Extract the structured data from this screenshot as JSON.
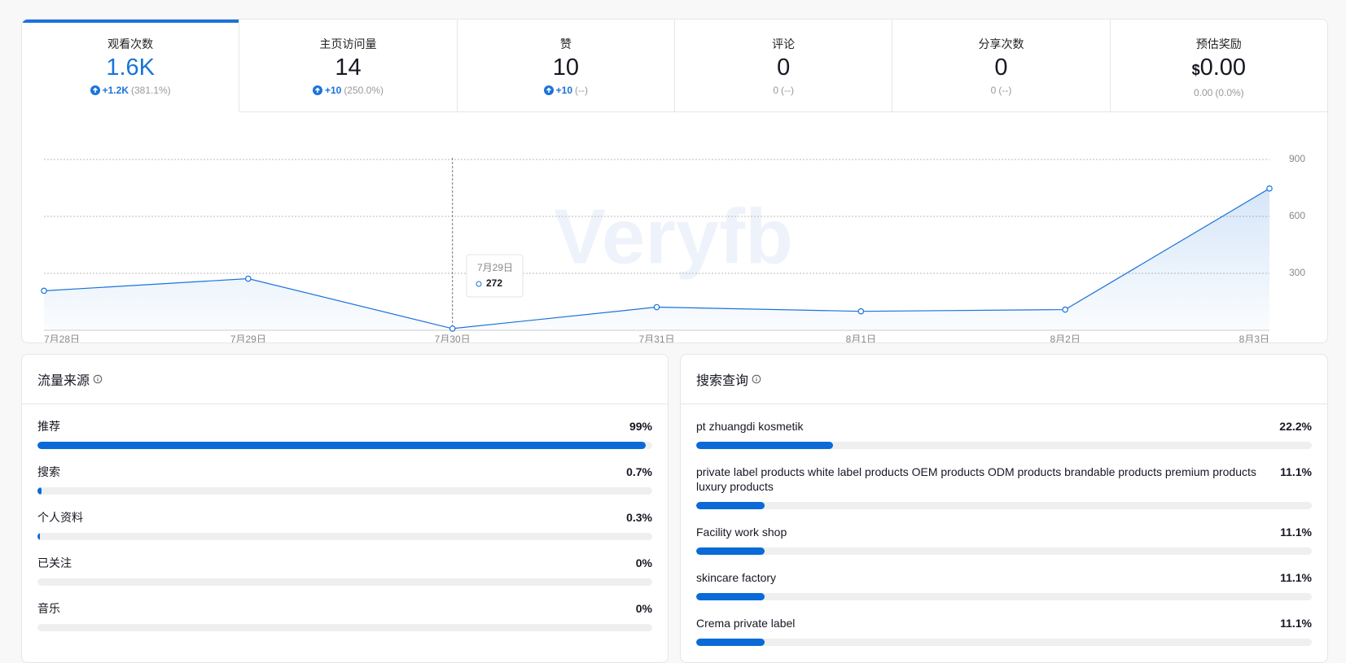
{
  "tabs": [
    {
      "label": "观看次数",
      "value": "1.6K",
      "trend": "up",
      "change": "+1.2K",
      "pct": "(381.1%)"
    },
    {
      "label": "主页访问量",
      "value": "14",
      "trend": "up",
      "change": "+10",
      "pct": "(250.0%)"
    },
    {
      "label": "赞",
      "value": "10",
      "trend": "up",
      "change": "+10",
      "pct": "(--)"
    },
    {
      "label": "评论",
      "value": "0",
      "change": "0",
      "pct": "(--)"
    },
    {
      "label": "分享次数",
      "value": "0",
      "change": "0",
      "pct": "(--)"
    },
    {
      "label": "预估奖励",
      "currency": "$",
      "value": "0.00",
      "change": "0.00",
      "pct": "(0.0%)"
    }
  ],
  "chart_data": {
    "type": "line",
    "categories": [
      "7月28日",
      "7月29日",
      "7月30日",
      "7月31日",
      "8月1日",
      "8月2日",
      "8月3日"
    ],
    "series": [
      {
        "name": "观看次数",
        "color": "#1a73d9",
        "values": [
          208,
          272,
          9,
          122,
          100,
          109,
          747
        ]
      }
    ],
    "ylim": [
      0,
      900
    ],
    "yticks": [
      300,
      600,
      900
    ],
    "grid": true,
    "tooltip_index": 1,
    "watermark": "Veryfb"
  },
  "panels": [
    {
      "title": "流量来源",
      "items": [
        {
          "label": "推荐",
          "value": 99,
          "value_label": "99%"
        },
        {
          "label": "搜索",
          "value": 0.7,
          "value_label": "0.7%"
        },
        {
          "label": "个人资料",
          "value": 0.3,
          "value_label": "0.3%"
        },
        {
          "label": "已关注",
          "value": 0,
          "value_label": "0%"
        },
        {
          "label": "音乐",
          "value": 0,
          "value_label": "0%"
        }
      ]
    },
    {
      "title": "搜索查询",
      "items": [
        {
          "label": "pt zhuangdi kosmetik",
          "value": 22.2,
          "value_label": "22.2%"
        },
        {
          "label": "private label products white label products OEM products ODM products brandable products premium products luxury products",
          "value": 11.1,
          "value_label": "11.1%"
        },
        {
          "label": "Facility work shop",
          "value": 11.1,
          "value_label": "11.1%"
        },
        {
          "label": "skincare factory",
          "value": 11.1,
          "value_label": "11.1%"
        },
        {
          "label": "Crema private label",
          "value": 11.1,
          "value_label": "11.1%"
        }
      ]
    }
  ]
}
